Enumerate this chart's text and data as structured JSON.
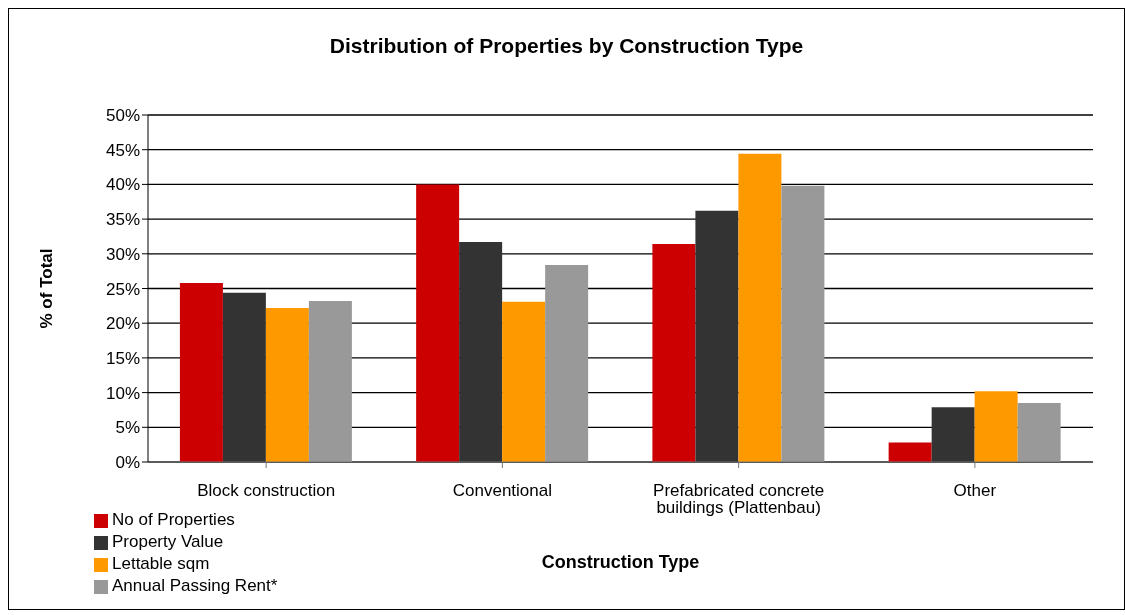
{
  "chart_data": {
    "type": "bar",
    "title": "Distribution of Properties by Construction Type",
    "xlabel": "Construction Type",
    "ylabel": "% of Total",
    "categories": [
      "Block construction",
      "Conventional",
      "Prefabricated concrete buildings (Plattenbau)",
      "Other"
    ],
    "series": [
      {
        "name": "No of Properties",
        "color": "#cc0000",
        "values": [
          25.8,
          40.0,
          31.4,
          2.8
        ]
      },
      {
        "name": "Property Value",
        "color": "#333333",
        "values": [
          24.4,
          31.7,
          36.2,
          7.9
        ]
      },
      {
        "name": "Lettable sqm",
        "color": "#ff9900",
        "values": [
          22.2,
          23.1,
          44.4,
          10.2
        ]
      },
      {
        "name": "Annual Passing Rent*",
        "color": "#999999",
        "values": [
          23.2,
          28.4,
          39.8,
          8.5
        ]
      }
    ],
    "ylim": [
      0,
      50
    ],
    "yticks": [
      {
        "value": 0,
        "label": "0%"
      },
      {
        "value": 5,
        "label": "5%"
      },
      {
        "value": 10,
        "label": "10%"
      },
      {
        "value": 15,
        "label": "15%"
      },
      {
        "value": 20,
        "label": "20%"
      },
      {
        "value": 25,
        "label": "25%"
      },
      {
        "value": 30,
        "label": "30%"
      },
      {
        "value": 35,
        "label": "35%"
      },
      {
        "value": 40,
        "label": "40%"
      },
      {
        "value": 45,
        "label": "45%"
      },
      {
        "value": 50,
        "label": "50%"
      }
    ],
    "grid": "y",
    "legend": "bottom left"
  }
}
